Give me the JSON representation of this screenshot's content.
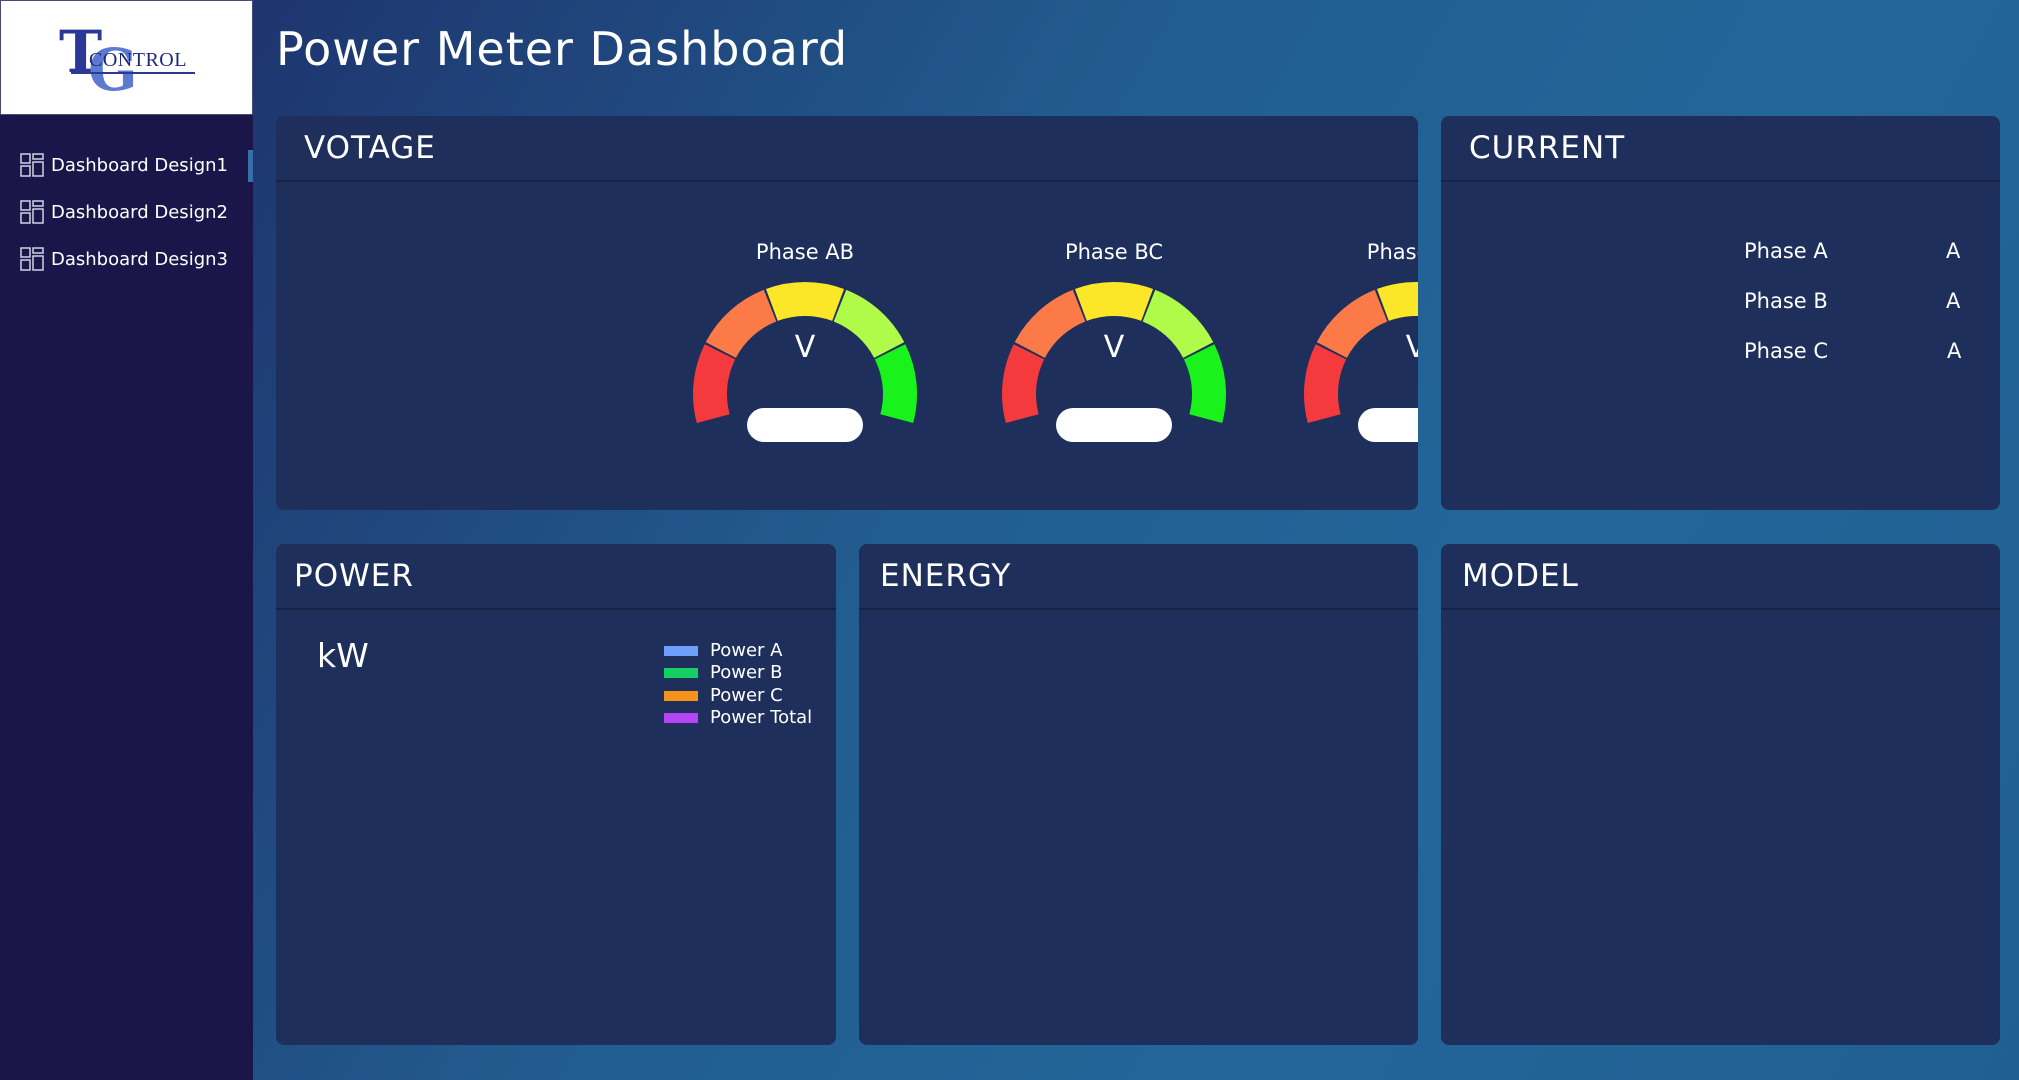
{
  "app": {
    "title": "Power Meter Dashboard",
    "logo_text": "TGCONTROL"
  },
  "sidebar": {
    "items": [
      {
        "label": "Dashboard Design1",
        "icon": "dashboard-icon",
        "active": true
      },
      {
        "label": "Dashboard Design2",
        "icon": "dashboard-icon",
        "active": false
      },
      {
        "label": "Dashboard Design3",
        "icon": "dashboard-icon",
        "active": false
      }
    ]
  },
  "voltage": {
    "title": "VOTAGE",
    "gauges": [
      {
        "label": "Phase AB",
        "unit": "V",
        "value": ""
      },
      {
        "label": "Phase BC",
        "unit": "V",
        "value": ""
      },
      {
        "label": "Phase CA",
        "unit": "V",
        "value": ""
      }
    ],
    "colors": [
      "#f43a3c",
      "#fb7a48",
      "#fbe627",
      "#b0fb4a",
      "#19f21b"
    ]
  },
  "current": {
    "title": "CURRENT",
    "rows": [
      {
        "label": "Phase A",
        "unit": "A"
      },
      {
        "label": "Phase B",
        "unit": "A"
      },
      {
        "label": "Phase C",
        "unit": "A"
      }
    ]
  },
  "power": {
    "title": "POWER",
    "unit": "kW",
    "legend": [
      {
        "label": "Power A",
        "color": "#6d9ffb"
      },
      {
        "label": "Power B",
        "color": "#16cf63"
      },
      {
        "label": "Power C",
        "color": "#f6931d"
      },
      {
        "label": "Power Total",
        "color": "#b545f4"
      }
    ]
  },
  "energy": {
    "title": "ENERGY"
  },
  "model": {
    "title": "MODEL"
  }
}
